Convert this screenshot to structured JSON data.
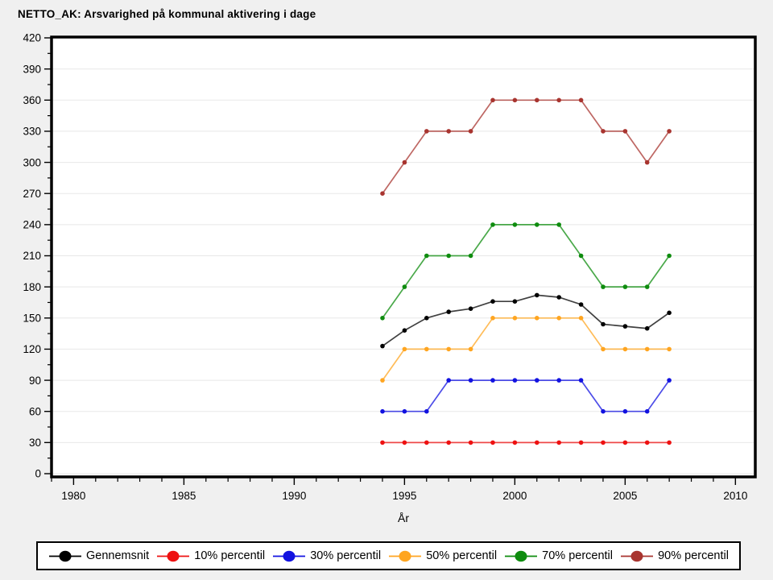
{
  "title": "NETTO_AK: Arsvarighed på kommunal aktivering i dage",
  "chart_data": {
    "type": "line",
    "title": "NETTO_AK: Arsvarighed på kommunal aktivering i dage",
    "xlabel": "År",
    "ylabel": "",
    "x": [
      1994,
      1995,
      1996,
      1997,
      1998,
      1999,
      2000,
      2001,
      2002,
      2003,
      2004,
      2005,
      2006,
      2007
    ],
    "series": [
      {
        "name": "Gennemsnit",
        "color": "#000000",
        "values": [
          123,
          138,
          150,
          156,
          159,
          166,
          166,
          172,
          170,
          163,
          144,
          142,
          140,
          155
        ]
      },
      {
        "name": "10% percentil",
        "color": "#EE1111",
        "values": [
          30,
          30,
          30,
          30,
          30,
          30,
          30,
          30,
          30,
          30,
          30,
          30,
          30,
          30
        ]
      },
      {
        "name": "30% percentil",
        "color": "#1212E0",
        "values": [
          60,
          60,
          60,
          90,
          90,
          90,
          90,
          90,
          90,
          90,
          60,
          60,
          60,
          90
        ]
      },
      {
        "name": "50% percentil",
        "color": "#FFA520",
        "values": [
          90,
          120,
          120,
          120,
          120,
          150,
          150,
          150,
          150,
          150,
          120,
          120,
          120,
          120
        ]
      },
      {
        "name": "70% percentil",
        "color": "#0E8C0E",
        "values": [
          150,
          180,
          210,
          210,
          210,
          240,
          240,
          240,
          240,
          210,
          180,
          180,
          180,
          210
        ]
      },
      {
        "name": "90% percentil",
        "color": "#A8342F",
        "values": [
          270,
          300,
          330,
          330,
          330,
          360,
          360,
          360,
          360,
          360,
          330,
          330,
          300,
          330
        ]
      }
    ],
    "x_major_ticks": [
      1980,
      1985,
      1990,
      1995,
      2000,
      2005,
      2010
    ],
    "x_minor_from": 1979,
    "x_minor_to": 2010,
    "y_major_ticks": [
      0,
      30,
      60,
      90,
      120,
      150,
      180,
      210,
      240,
      270,
      300,
      330,
      360,
      390,
      420
    ],
    "y_minor_step": 15,
    "xlim": [
      1979,
      2010.9
    ],
    "ylim": [
      0,
      420
    ],
    "grid": "horizontal",
    "legend_position": "bottom"
  },
  "colors": {
    "page_bg": "#F0F0F0",
    "plot_bg": "#FFFFFF",
    "frame": "#000000",
    "grid": "#E8E8E8",
    "tick": "#000000",
    "text": "#000000"
  }
}
